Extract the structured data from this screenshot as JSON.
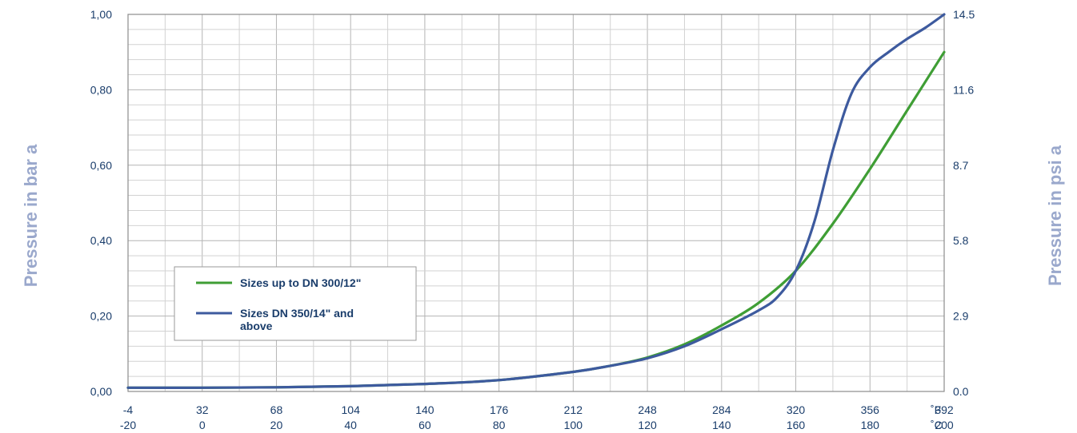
{
  "chart_data": {
    "type": "line",
    "ylabel": "Pressure in bar a",
    "y2label": "Pressure in psi a",
    "x_unit_f": "˚F",
    "x_unit_c": "˚C",
    "xlim": [
      -20,
      200
    ],
    "ylim": [
      0,
      1
    ],
    "x_ticks_c": [
      "-20",
      "0",
      "20",
      "40",
      "60",
      "80",
      "100",
      "120",
      "140",
      "160",
      "180",
      "200"
    ],
    "x_ticks_f": [
      "-4",
      "32",
      "68",
      "104",
      "140",
      "176",
      "212",
      "248",
      "284",
      "320",
      "356",
      "392"
    ],
    "y_ticks": [
      "0,00",
      "0,20",
      "0,40",
      "0,60",
      "0,80",
      "1,00"
    ],
    "y2_ticks": [
      "0.0",
      "2.9",
      "5.8",
      "8.7",
      "11.6",
      "14.5"
    ],
    "grid": true,
    "series": [
      {
        "name": "Sizes up to DN 300/12\"",
        "color": "#3f9e35",
        "x": [
          -20,
          0,
          20,
          40,
          60,
          80,
          100,
          110,
          120,
          130,
          140,
          150,
          160,
          170,
          180,
          190,
          200
        ],
        "y": [
          0.01,
          0.01,
          0.011,
          0.014,
          0.02,
          0.03,
          0.052,
          0.068,
          0.09,
          0.125,
          0.175,
          0.235,
          0.32,
          0.445,
          0.59,
          0.745,
          0.9
        ]
      },
      {
        "name": "Sizes DN 350/14\" and above",
        "color": "#3d5a9e",
        "x": [
          -20,
          0,
          20,
          40,
          60,
          80,
          100,
          110,
          120,
          130,
          140,
          150,
          155,
          160,
          165,
          170,
          175,
          180,
          185,
          190,
          195,
          200
        ],
        "y": [
          0.01,
          0.01,
          0.011,
          0.014,
          0.02,
          0.03,
          0.052,
          0.068,
          0.088,
          0.12,
          0.165,
          0.215,
          0.25,
          0.32,
          0.45,
          0.64,
          0.79,
          0.86,
          0.9,
          0.935,
          0.965,
          1.0
        ]
      }
    ],
    "legend": {
      "position": "center-left",
      "entries": [
        "Sizes up to DN 300/12\"",
        "Sizes DN 350/14\" and",
        "above"
      ]
    }
  }
}
